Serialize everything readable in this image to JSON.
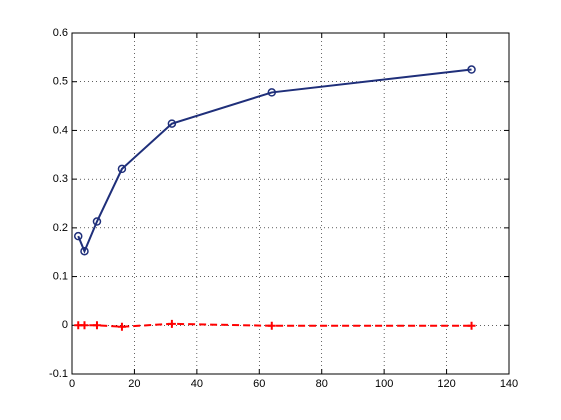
{
  "chart_data": {
    "type": "line",
    "x": [
      2,
      4,
      8,
      16,
      32,
      64,
      128
    ],
    "series": [
      {
        "color": "#1f2f7a",
        "line_style": "solid",
        "marker": "circle",
        "values": [
          0.183,
          0.152,
          0.213,
          0.321,
          0.414,
          0.478,
          0.525
        ]
      },
      {
        "color": "#ff0000",
        "line_style": "dashed",
        "marker": "plus",
        "values": [
          0,
          0,
          0,
          -0.003,
          0.003,
          -0.001,
          -0.001
        ]
      }
    ],
    "xlim": [
      0,
      140
    ],
    "xticks": [
      0,
      20,
      40,
      60,
      80,
      100,
      120,
      140
    ],
    "ylim": [
      -0.1,
      0.6
    ],
    "yticks": [
      -0.1,
      0,
      0.1,
      0.2,
      0.3,
      0.4,
      0.5,
      0.6
    ],
    "grid": true
  }
}
